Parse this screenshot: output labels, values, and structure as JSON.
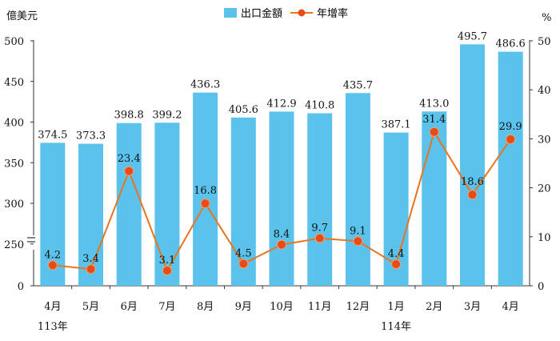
{
  "chart_data": {
    "type": "bar+line",
    "y_left_unit": "億美元",
    "y_right_unit": "%",
    "y_left_ticks": [
      "0",
      "250",
      "300",
      "350",
      "400",
      "450",
      "500"
    ],
    "y_right_ticks": [
      "0",
      "10",
      "20",
      "30",
      "40",
      "50"
    ],
    "y_left_break": true,
    "y_right_lim": [
      0,
      50
    ],
    "categories": [
      "4月",
      "5月",
      "6月",
      "7月",
      "8月",
      "9月",
      "10月",
      "11月",
      "12月",
      "1月",
      "2月",
      "3月",
      "4月"
    ],
    "year_labels": [
      {
        "index": 0,
        "label": "113年"
      },
      {
        "index": 9,
        "label": "114年"
      }
    ],
    "series": [
      {
        "name": "出口金額",
        "type": "bar",
        "axis": "left",
        "color": "#5bc2ec",
        "values": [
          374.5,
          373.3,
          398.8,
          399.2,
          436.3,
          405.6,
          412.9,
          410.8,
          435.7,
          387.1,
          413.0,
          495.7,
          486.6
        ],
        "labels": [
          "374.5",
          "373.3",
          "398.8",
          "399.2",
          "436.3",
          "405.6",
          "412.9",
          "410.8",
          "435.7",
          "387.1",
          "413.0",
          "495.7",
          "486.6"
        ]
      },
      {
        "name": "年增率",
        "type": "line",
        "axis": "right",
        "color": "#e8741e",
        "marker_color": "#e84a1a",
        "values": [
          4.2,
          3.4,
          23.4,
          3.1,
          16.8,
          4.5,
          8.4,
          9.7,
          9.1,
          4.4,
          31.4,
          18.6,
          29.9
        ],
        "labels": [
          "4.2",
          "3.4",
          "23.4",
          "3.1",
          "16.8",
          "4.5",
          "8.4",
          "9.7",
          "9.1",
          "4.4",
          "31.4",
          "18.6",
          "29.9"
        ]
      }
    ],
    "legend_position": "top-center",
    "grid": false
  }
}
